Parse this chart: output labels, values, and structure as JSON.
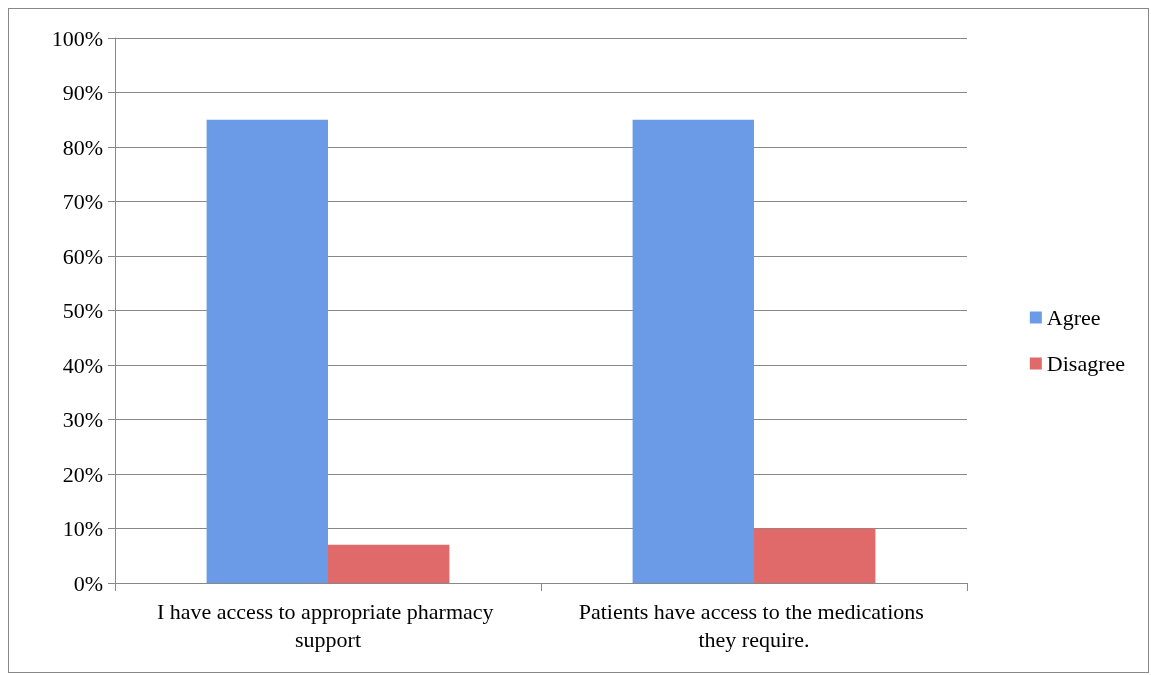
{
  "chart_data": {
    "type": "bar",
    "categories": [
      "I have access to appropriate pharmacy support",
      "Patients have access to the medications they require."
    ],
    "series": [
      {
        "name": "Agree",
        "color": "#6b9be6",
        "values": [
          85,
          85
        ]
      },
      {
        "name": "Disagree",
        "color": "#e06a6a",
        "values": [
          7,
          10
        ]
      }
    ],
    "ylim": [
      0,
      100
    ],
    "yticks": [
      {
        "value": 0,
        "label": "0%"
      },
      {
        "value": 10,
        "label": "10%"
      },
      {
        "value": 20,
        "label": "20%"
      },
      {
        "value": 30,
        "label": "30%"
      },
      {
        "value": 40,
        "label": "40%"
      },
      {
        "value": 50,
        "label": "50%"
      },
      {
        "value": 60,
        "label": "60%"
      },
      {
        "value": 70,
        "label": "70%"
      },
      {
        "value": 80,
        "label": "80%"
      },
      {
        "value": 90,
        "label": "90%"
      },
      {
        "value": 100,
        "label": "100%"
      }
    ],
    "grid": "y",
    "legend": "right"
  }
}
